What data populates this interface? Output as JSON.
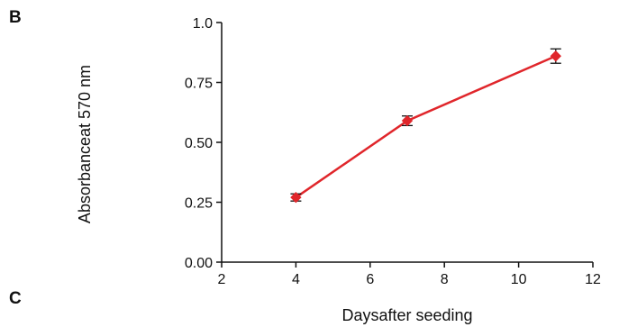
{
  "panels": {
    "b_label": "B",
    "c_label": "C"
  },
  "chart_data": {
    "type": "line",
    "title": "",
    "xlabel": "Daysafter seeding",
    "ylabel": "Absorbanceat 570 nm",
    "xlim": [
      2,
      12
    ],
    "ylim": [
      0,
      1.0
    ],
    "x_ticks": [
      2,
      4,
      6,
      8,
      10,
      12
    ],
    "x_tick_labels": [
      "2",
      "4",
      "6",
      "8",
      "10",
      "12"
    ],
    "y_ticks": [
      0,
      0.25,
      0.5,
      0.75,
      1.0
    ],
    "y_tick_labels": [
      "0.00",
      "0.25",
      "0.50",
      "0.75",
      "1.0"
    ],
    "grid": false,
    "series": [
      {
        "marker": "diamond",
        "color": "#e0262b",
        "points": [
          {
            "x": 4,
            "y": 0.27,
            "err": 0.015
          },
          {
            "x": 7,
            "y": 0.59,
            "err": 0.02
          },
          {
            "x": 11,
            "y": 0.86,
            "err": 0.03
          }
        ]
      }
    ]
  }
}
